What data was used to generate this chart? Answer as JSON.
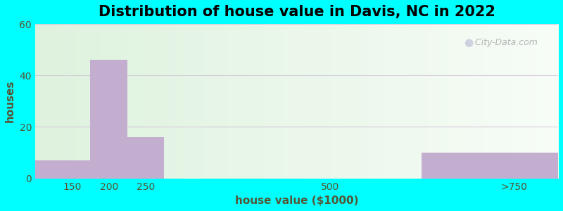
{
  "title": "Distribution of house value in Davis, NC in 2022",
  "xlabel": "house value ($1000)",
  "ylabel": "houses",
  "categories": [
    "150",
    "200",
    "250",
    "500",
    ">750"
  ],
  "values": [
    7,
    46,
    16,
    0,
    10
  ],
  "bar_color": "#c4aed0",
  "ylim": [
    0,
    60
  ],
  "yticks": [
    0,
    20,
    40,
    60
  ],
  "background_outer": "#00FFFF",
  "title_fontsize": 15,
  "axis_label_fontsize": 11,
  "tick_fontsize": 10,
  "grid_color": "#d0c0d8",
  "grid_alpha": 0.8,
  "text_color": "#555533",
  "bin_lefts": [
    100,
    175,
    225,
    275,
    625
  ],
  "bin_rights": [
    175,
    225,
    275,
    625,
    810
  ],
  "xtick_positions": [
    150,
    200,
    250,
    500,
    750
  ],
  "xtick_labels": [
    "150",
    "200",
    "250",
    "500",
    ">750"
  ],
  "xlim": [
    100,
    810
  ]
}
